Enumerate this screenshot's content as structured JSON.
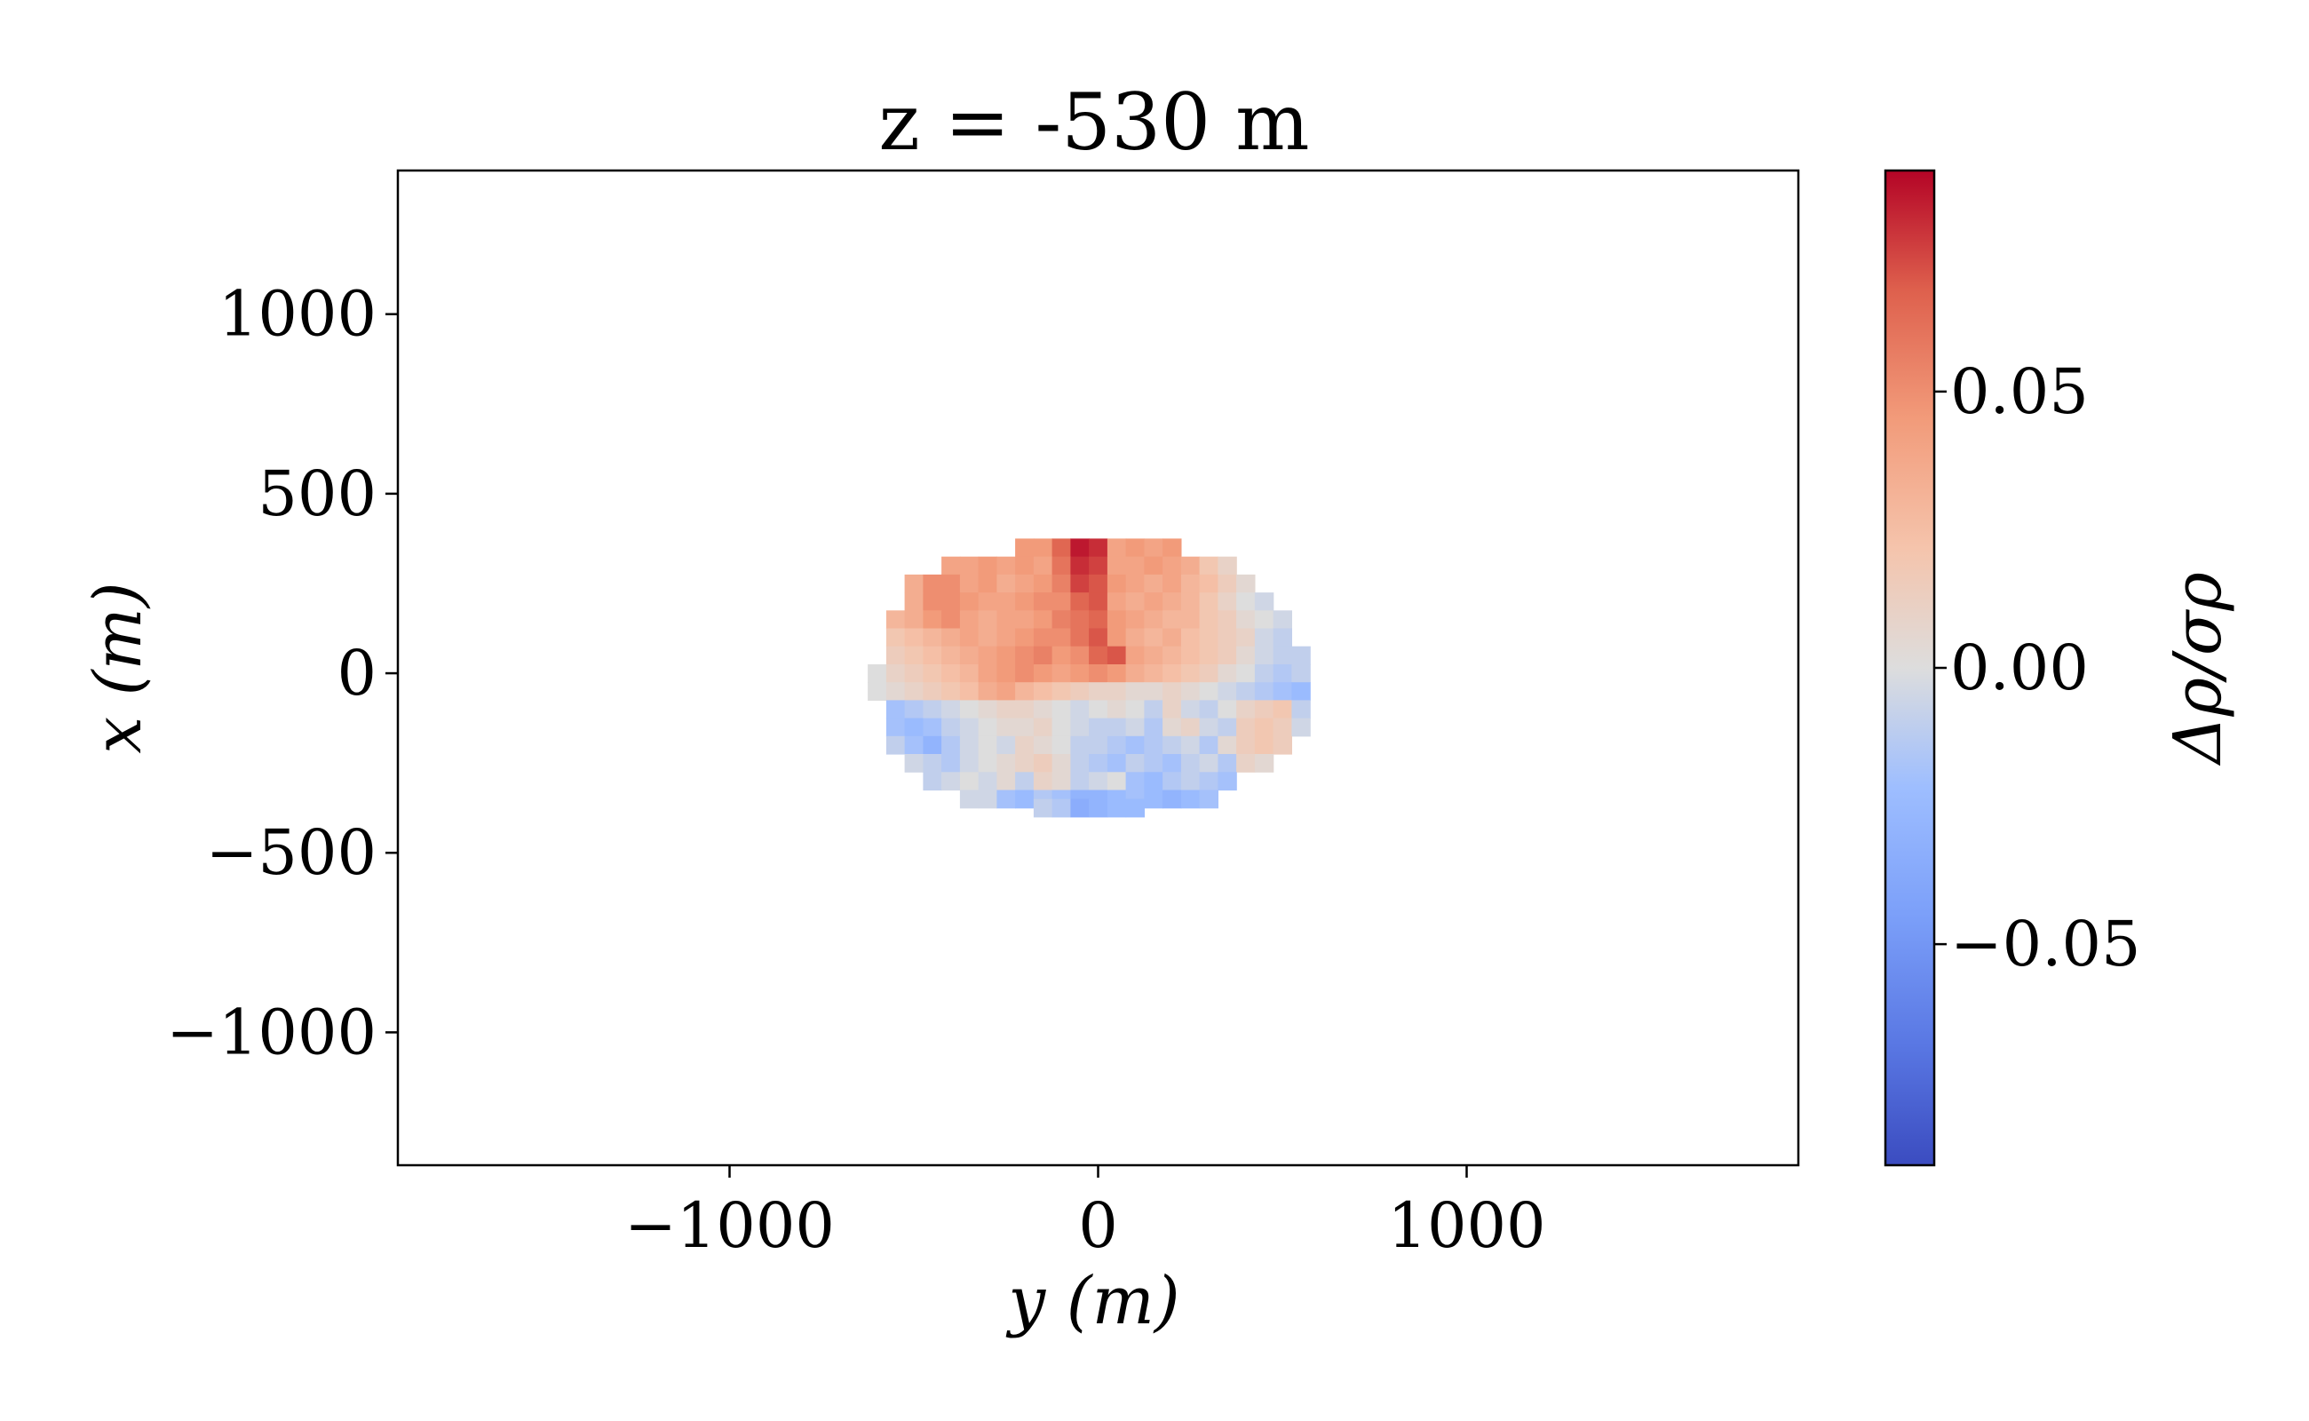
{
  "chart_data": {
    "type": "heatmap",
    "title": "z = -530 m",
    "xlabel": "y (m)",
    "ylabel": "x (m)",
    "xlim": [
      -1900,
      1900
    ],
    "ylim": [
      -1370,
      1400
    ],
    "xticks": [
      -1000,
      0,
      1000
    ],
    "xtick_labels": [
      "−1000",
      "0",
      "1000"
    ],
    "yticks": [
      1000,
      500,
      0,
      -500,
      -1000
    ],
    "ytick_labels": [
      "1000",
      "500",
      "0",
      "−500",
      "−1000"
    ],
    "colorbar": {
      "label": "Δρ/σρ",
      "cmap": "coolwarm",
      "range": [
        -0.09,
        0.09
      ],
      "ticks": [
        0.05,
        0.0,
        -0.05
      ],
      "tick_labels": [
        "0.05",
        "0.00",
        "−0.05"
      ],
      "colors": {
        "low": "#3b4cc0",
        "mid": "#dddddd",
        "high": "#b40426"
      }
    },
    "cell_size_m": 50,
    "y_start": -650,
    "x_start": -375,
    "grid_note": "rows from top (x = 350) to bottom (x = -375); each row lists values for y = -650 + 50*i; null = no data",
    "rows": [
      {
        "x": 350,
        "values": [
          null,
          null,
          null,
          null,
          null,
          null,
          null,
          null,
          null,
          0.045,
          0.045,
          0.065,
          0.085,
          0.08,
          0.04,
          0.045,
          0.04,
          0.045,
          null,
          null,
          null,
          null,
          null,
          null,
          null,
          null
        ]
      },
      {
        "x": 300,
        "values": [
          null,
          null,
          null,
          null,
          null,
          0.04,
          0.04,
          0.045,
          0.04,
          0.045,
          0.04,
          0.06,
          0.08,
          0.075,
          0.04,
          0.04,
          0.045,
          0.04,
          0.035,
          0.02,
          0.01,
          null,
          null,
          null,
          null,
          null
        ]
      },
      {
        "x": 250,
        "values": [
          null,
          null,
          null,
          0.035,
          0.05,
          0.05,
          0.04,
          0.045,
          0.035,
          0.04,
          0.045,
          0.055,
          0.075,
          0.07,
          0.045,
          0.04,
          0.035,
          0.04,
          0.03,
          0.025,
          0.015,
          0.005,
          null,
          null,
          null,
          null
        ]
      },
      {
        "x": 200,
        "values": [
          null,
          null,
          null,
          0.035,
          0.05,
          0.05,
          0.045,
          0.04,
          0.04,
          0.045,
          0.05,
          0.05,
          0.065,
          0.07,
          0.04,
          0.035,
          0.04,
          0.035,
          0.03,
          0.02,
          0.01,
          0.0,
          -0.005,
          null,
          null,
          null
        ]
      },
      {
        "x": 150,
        "values": [
          null,
          null,
          0.03,
          0.035,
          0.045,
          0.05,
          0.04,
          0.035,
          0.04,
          0.04,
          0.045,
          0.055,
          0.06,
          0.065,
          0.045,
          0.04,
          0.035,
          0.03,
          0.03,
          0.02,
          0.015,
          0.005,
          0.0,
          -0.005,
          null,
          null
        ]
      },
      {
        "x": 100,
        "values": [
          null,
          null,
          0.02,
          0.025,
          0.03,
          0.035,
          0.04,
          0.035,
          0.04,
          0.045,
          0.05,
          0.05,
          0.06,
          0.07,
          0.045,
          0.035,
          0.03,
          0.035,
          0.025,
          0.02,
          0.015,
          0.01,
          -0.005,
          -0.01,
          null,
          null
        ]
      },
      {
        "x": 50,
        "values": [
          null,
          null,
          0.015,
          0.02,
          0.025,
          0.03,
          0.035,
          0.04,
          0.045,
          0.05,
          0.055,
          0.045,
          0.05,
          0.065,
          0.07,
          0.04,
          0.035,
          0.03,
          0.025,
          0.02,
          0.015,
          0.005,
          -0.005,
          -0.01,
          -0.01,
          null
        ]
      },
      {
        "x": 0,
        "values": [
          null,
          0.0,
          0.01,
          0.015,
          0.02,
          0.025,
          0.03,
          0.04,
          0.045,
          0.05,
          0.045,
          0.04,
          0.045,
          0.05,
          0.045,
          0.035,
          0.03,
          0.025,
          0.02,
          0.015,
          0.005,
          0.0,
          -0.01,
          -0.015,
          -0.01,
          null
        ]
      },
      {
        "x": -50,
        "values": [
          null,
          0.0,
          0.005,
          0.01,
          0.015,
          0.02,
          0.025,
          0.035,
          0.04,
          0.03,
          0.025,
          0.02,
          0.015,
          0.01,
          0.01,
          0.005,
          0.005,
          0.01,
          0.005,
          0.0,
          -0.005,
          -0.01,
          -0.015,
          -0.02,
          -0.025,
          null
        ]
      },
      {
        "x": -100,
        "values": [
          null,
          null,
          -0.02,
          -0.015,
          -0.01,
          -0.005,
          0.0,
          0.005,
          0.01,
          0.01,
          0.005,
          0.0,
          -0.005,
          0.0,
          0.005,
          0.0,
          -0.01,
          0.01,
          -0.005,
          -0.01,
          0.0,
          0.01,
          0.015,
          0.02,
          -0.01,
          null
        ]
      },
      {
        "x": -150,
        "values": [
          null,
          null,
          -0.02,
          -0.025,
          -0.02,
          -0.01,
          -0.005,
          0.0,
          0.005,
          0.005,
          0.01,
          0.0,
          -0.005,
          -0.01,
          -0.01,
          -0.005,
          -0.015,
          0.005,
          0.01,
          -0.005,
          -0.01,
          0.015,
          0.02,
          0.015,
          -0.005,
          null
        ]
      },
      {
        "x": -200,
        "values": [
          null,
          null,
          -0.01,
          -0.02,
          -0.03,
          -0.015,
          -0.005,
          0.0,
          -0.005,
          0.01,
          0.005,
          0.0,
          -0.01,
          -0.01,
          -0.015,
          -0.02,
          -0.015,
          -0.01,
          -0.005,
          -0.015,
          0.005,
          0.015,
          0.02,
          0.015,
          null,
          null
        ]
      },
      {
        "x": -250,
        "values": [
          null,
          null,
          null,
          -0.005,
          -0.01,
          -0.015,
          -0.005,
          0.0,
          0.005,
          0.01,
          0.015,
          0.005,
          -0.01,
          -0.015,
          -0.02,
          -0.01,
          -0.015,
          -0.02,
          -0.01,
          -0.005,
          -0.015,
          0.01,
          0.005,
          null,
          null,
          null
        ]
      },
      {
        "x": -300,
        "values": [
          null,
          null,
          null,
          null,
          -0.01,
          -0.005,
          0.0,
          -0.005,
          0.005,
          -0.01,
          0.01,
          0.005,
          -0.01,
          -0.005,
          0.0,
          -0.02,
          -0.025,
          -0.015,
          -0.01,
          -0.015,
          -0.02,
          null,
          null,
          null,
          null,
          null
        ]
      },
      {
        "x": -350,
        "values": [
          null,
          null,
          null,
          null,
          null,
          null,
          -0.005,
          -0.005,
          -0.02,
          -0.025,
          -0.015,
          -0.02,
          -0.03,
          -0.03,
          -0.025,
          -0.02,
          -0.025,
          -0.03,
          -0.025,
          -0.02,
          null,
          null,
          null,
          null,
          null,
          null
        ]
      },
      {
        "x": -375,
        "values": [
          null,
          null,
          null,
          null,
          null,
          null,
          null,
          null,
          null,
          null,
          -0.01,
          -0.015,
          -0.035,
          -0.03,
          -0.025,
          -0.025,
          null,
          null,
          null,
          null,
          null,
          null,
          null,
          null,
          null,
          null
        ]
      }
    ]
  }
}
